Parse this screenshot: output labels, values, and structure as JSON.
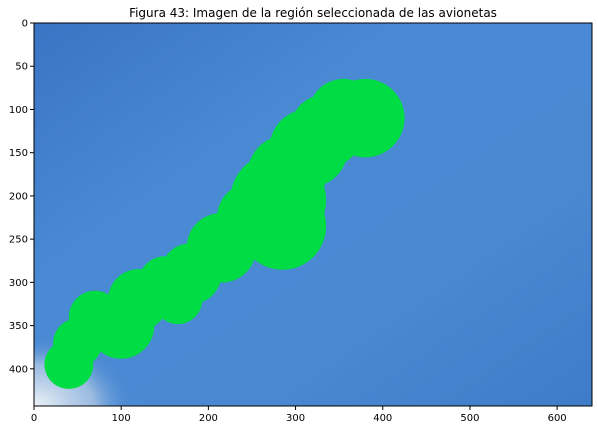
{
  "chart_data": {
    "type": "image",
    "title": "Figura 43: Imagen de la región seleccionada de las avionetas",
    "xlabel": "",
    "ylabel": "",
    "xlim": [
      0,
      640
    ],
    "ylim": [
      443,
      0
    ],
    "x_ticks": [
      0,
      100,
      200,
      300,
      400,
      500,
      600
    ],
    "y_ticks": [
      0,
      50,
      100,
      150,
      200,
      250,
      300,
      350,
      400
    ],
    "grid": false,
    "colors": {
      "sky": "#3f7fcb",
      "sky_light": "#4a90d8",
      "region": "#00dd44",
      "haze": "#dfe8ef"
    },
    "region_blobs": [
      {
        "x": 380,
        "y": 110,
        "r": 45
      },
      {
        "x": 355,
        "y": 105,
        "r": 40
      },
      {
        "x": 335,
        "y": 125,
        "r": 42
      },
      {
        "x": 315,
        "y": 145,
        "r": 45
      },
      {
        "x": 290,
        "y": 175,
        "r": 45
      },
      {
        "x": 280,
        "y": 205,
        "r": 55
      },
      {
        "x": 285,
        "y": 235,
        "r": 50
      },
      {
        "x": 250,
        "y": 225,
        "r": 40
      },
      {
        "x": 215,
        "y": 260,
        "r": 40
      },
      {
        "x": 180,
        "y": 290,
        "r": 35
      },
      {
        "x": 150,
        "y": 300,
        "r": 30
      },
      {
        "x": 165,
        "y": 320,
        "r": 28
      },
      {
        "x": 120,
        "y": 320,
        "r": 35
      },
      {
        "x": 100,
        "y": 350,
        "r": 38
      },
      {
        "x": 70,
        "y": 340,
        "r": 30
      },
      {
        "x": 50,
        "y": 370,
        "r": 28
      },
      {
        "x": 40,
        "y": 395,
        "r": 28
      }
    ]
  }
}
